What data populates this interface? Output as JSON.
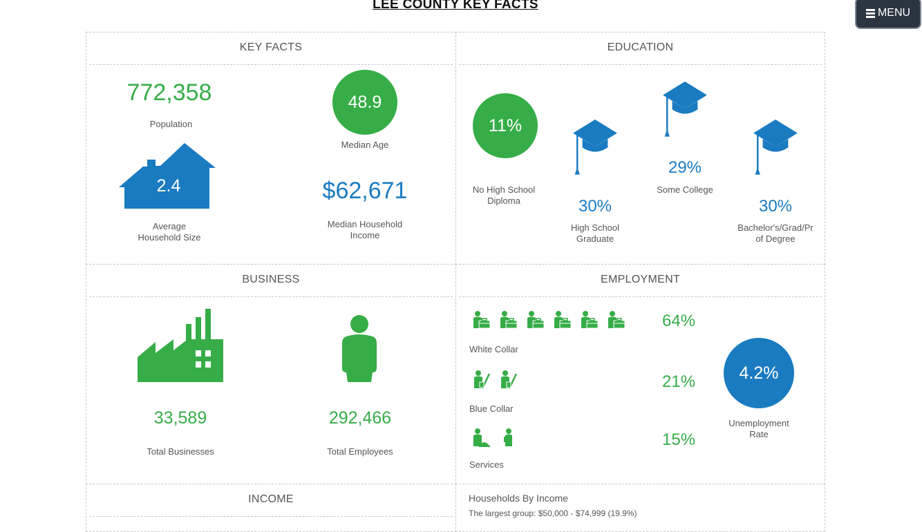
{
  "page": {
    "title": "LEE COUNTY KEY FACTS",
    "menu_label": "MENU"
  },
  "colors": {
    "green": "#36ad47",
    "blue": "#1a7bc1",
    "menu_bg": "#2b3542"
  },
  "key_facts": {
    "header": "KEY FACTS",
    "population_value": "772,358",
    "population_label": "Population",
    "median_age_value": "48.9",
    "median_age_label": "Median Age",
    "household_size_value": "2.4",
    "household_size_label_1": "Average",
    "household_size_label_2": "Household Size",
    "income_value": "$62,671",
    "income_label_1": "Median Household",
    "income_label_2": "Income"
  },
  "education": {
    "header": "EDUCATION",
    "no_hs_value": "11%",
    "no_hs_label_1": "No High School",
    "no_hs_label_2": "Diploma",
    "hs_value": "30%",
    "hs_label_1": "High School",
    "hs_label_2": "Graduate",
    "some_college_value": "29%",
    "some_college_label": "Some College",
    "bachelor_value": "30%",
    "bachelor_label_1": "Bachelor's/Grad/Pr",
    "bachelor_label_2": "of Degree"
  },
  "business": {
    "header": "BUSINESS",
    "businesses_value": "33,589",
    "businesses_label": "Total Businesses",
    "employees_value": "292,466",
    "employees_label": "Total Employees"
  },
  "employment": {
    "header": "EMPLOYMENT",
    "white_collar_value": "64%",
    "white_collar_label": "White Collar",
    "blue_collar_value": "21%",
    "blue_collar_label": "Blue Collar",
    "services_value": "15%",
    "services_label": "Services",
    "unemployment_value": "4.2%",
    "unemployment_label_1": "Unemployment",
    "unemployment_label_2": "Rate"
  },
  "income": {
    "header": "INCOME"
  },
  "households_by_income": {
    "title": "Households By Income",
    "subtitle": "The largest group: $50,000 - $74,999 (19.9%)"
  }
}
